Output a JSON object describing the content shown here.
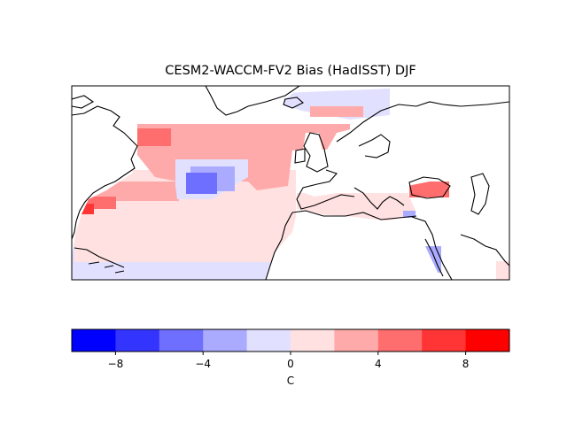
{
  "title": "CESM2-WACCM-FV2 Bias (HadISST) DJF",
  "colorbar": {
    "label": "C",
    "min": -10,
    "max": 10,
    "ticks": [
      "−8",
      "−4",
      "0",
      "4",
      "8"
    ],
    "tick_values": [
      -8,
      -4,
      0,
      4,
      8
    ],
    "colors": [
      "#0000ff",
      "#3434ff",
      "#6e6eff",
      "#aaaaff",
      "#e1e1ff",
      "#ffe1e1",
      "#ffaaaa",
      "#ff6e6e",
      "#ff3434",
      "#ff0000"
    ]
  },
  "chart_data": {
    "type": "heatmap",
    "title": "CESM2-WACCM-FV2 Bias (HadISST) DJF",
    "colorbar_label": "C",
    "colorbar_range": [
      -10,
      10
    ],
    "colorbar_levels": [
      -10,
      -8,
      -6,
      -4,
      -2,
      0,
      2,
      4,
      6,
      8,
      10
    ],
    "colorbar_ticks": [
      -8,
      -4,
      0,
      4,
      8
    ],
    "regions": [
      {
        "region": "Labrador Sea / Grand Banks",
        "bias_level": "+4 to +6"
      },
      {
        "region": "Subpolar North Atlantic band",
        "bias_level": "+2 to +4"
      },
      {
        "region": "Central North Atlantic (cold patch)",
        "bias_level": "-6 to -2"
      },
      {
        "region": "Gulf Stream off US east coast",
        "bias_level": "+4 to +8"
      },
      {
        "region": "Subtropical North Atlantic",
        "bias_level": "0 to +2"
      },
      {
        "region": "Tropical North Atlantic",
        "bias_level": "-2 to 0"
      },
      {
        "region": "Norwegian / Greenland Sea",
        "bias_level": "-2 to 0"
      },
      {
        "region": "Black Sea",
        "bias_level": "+4 to +6"
      },
      {
        "region": "Baltic Sea",
        "bias_level": "+2 to +4"
      },
      {
        "region": "Mediterranean Sea",
        "bias_level": "0 to +2"
      },
      {
        "region": "Red Sea",
        "bias_level": "-4 to -2"
      }
    ]
  }
}
